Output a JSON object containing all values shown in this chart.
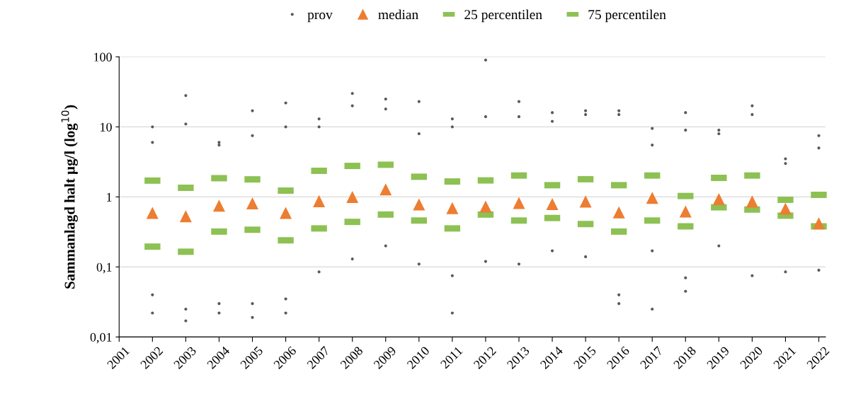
{
  "chart_data": {
    "type": "scatter",
    "ylabel": "Sammanlagd halt µg/l (log$^{10}$)",
    "xlim": [
      2001,
      2022.2
    ],
    "xticks": [
      2001,
      2002,
      2003,
      2004,
      2005,
      2006,
      2007,
      2008,
      2009,
      2010,
      2011,
      2012,
      2013,
      2014,
      2015,
      2016,
      2017,
      2018,
      2019,
      2020,
      2021,
      2022
    ],
    "log": "y",
    "ylim": [
      0.01,
      100
    ],
    "yticks": [
      {
        "value": 0.01,
        "label": "0,01"
      },
      {
        "value": 0.1,
        "label": "0,1"
      },
      1,
      10,
      100
    ],
    "grid": "y",
    "legend": "top",
    "series": [
      {
        "name": "prov",
        "marker": "circle",
        "color": "#595959",
        "x": [
          2002,
          2002,
          2002,
          2002,
          2003,
          2003,
          2003,
          2003,
          2004,
          2004,
          2004,
          2004,
          2005,
          2005,
          2005,
          2005,
          2006,
          2006,
          2006,
          2006,
          2007,
          2007,
          2007,
          2008,
          2008,
          2008,
          2009,
          2009,
          2009,
          2010,
          2010,
          2010,
          2011,
          2011,
          2011,
          2011,
          2012,
          2012,
          2012,
          2013,
          2013,
          2013,
          2014,
          2014,
          2014,
          2015,
          2015,
          2015,
          2016,
          2016,
          2016,
          2016,
          2017,
          2017,
          2017,
          2017,
          2018,
          2018,
          2018,
          2018,
          2019,
          2019,
          2019,
          2020,
          2020,
          2020,
          2021,
          2021,
          2021,
          2022,
          2022,
          2022
        ],
        "values": [
          10,
          6,
          0.04,
          0.022,
          28,
          11,
          0.025,
          0.017,
          6,
          5.5,
          0.03,
          0.022,
          17,
          7.5,
          0.03,
          0.019,
          22,
          10,
          0.035,
          0.022,
          13,
          10,
          0.085,
          30,
          20,
          0.13,
          25,
          18,
          0.2,
          23,
          8,
          0.11,
          13,
          10,
          0.075,
          0.022,
          90,
          14,
          0.12,
          23,
          14,
          0.11,
          16,
          12,
          0.17,
          17,
          15,
          0.14,
          17,
          15,
          0.04,
          0.03,
          9.5,
          5.5,
          0.17,
          0.025,
          16,
          9,
          0.07,
          0.045,
          9,
          8,
          0.2,
          20,
          15,
          0.075,
          3.5,
          3,
          0.085,
          7.5,
          5,
          0.09
        ]
      },
      {
        "name": "median",
        "marker": "triangle",
        "color": "#ed7d31",
        "x": [
          2002,
          2003,
          2004,
          2005,
          2006,
          2007,
          2008,
          2009,
          2010,
          2011,
          2012,
          2013,
          2014,
          2015,
          2016,
          2017,
          2018,
          2019,
          2020,
          2021,
          2022
        ],
        "values": [
          0.59,
          0.53,
          0.75,
          0.81,
          0.59,
          0.87,
          1.0,
          1.28,
          0.78,
          0.69,
          0.73,
          0.82,
          0.79,
          0.86,
          0.6,
          0.97,
          0.62,
          0.93,
          0.86,
          0.68,
          0.42
        ]
      },
      {
        "name": "25 percentilen",
        "marker": "square",
        "color": "#8dc153",
        "x": [
          2002,
          2003,
          2004,
          2005,
          2006,
          2007,
          2008,
          2009,
          2010,
          2011,
          2012,
          2013,
          2014,
          2015,
          2016,
          2017,
          2018,
          2019,
          2020,
          2021,
          2022
        ],
        "values": [
          0.195,
          0.165,
          0.32,
          0.34,
          0.24,
          0.355,
          0.44,
          0.56,
          0.46,
          0.355,
          0.56,
          0.46,
          0.5,
          0.41,
          0.32,
          0.46,
          0.38,
          0.71,
          0.66,
          0.54,
          0.38
        ]
      },
      {
        "name": "75 percentilen",
        "marker": "square",
        "color": "#8dc153",
        "x": [
          2002,
          2003,
          2004,
          2005,
          2006,
          2007,
          2008,
          2009,
          2010,
          2011,
          2012,
          2013,
          2014,
          2015,
          2016,
          2017,
          2018,
          2019,
          2020,
          2021,
          2022
        ],
        "values": [
          1.71,
          1.35,
          1.85,
          1.78,
          1.23,
          2.36,
          2.77,
          2.88,
          1.94,
          1.66,
          1.72,
          2.02,
          1.47,
          1.79,
          1.47,
          2.02,
          1.03,
          1.87,
          2.02,
          0.91,
          1.07
        ]
      }
    ]
  }
}
